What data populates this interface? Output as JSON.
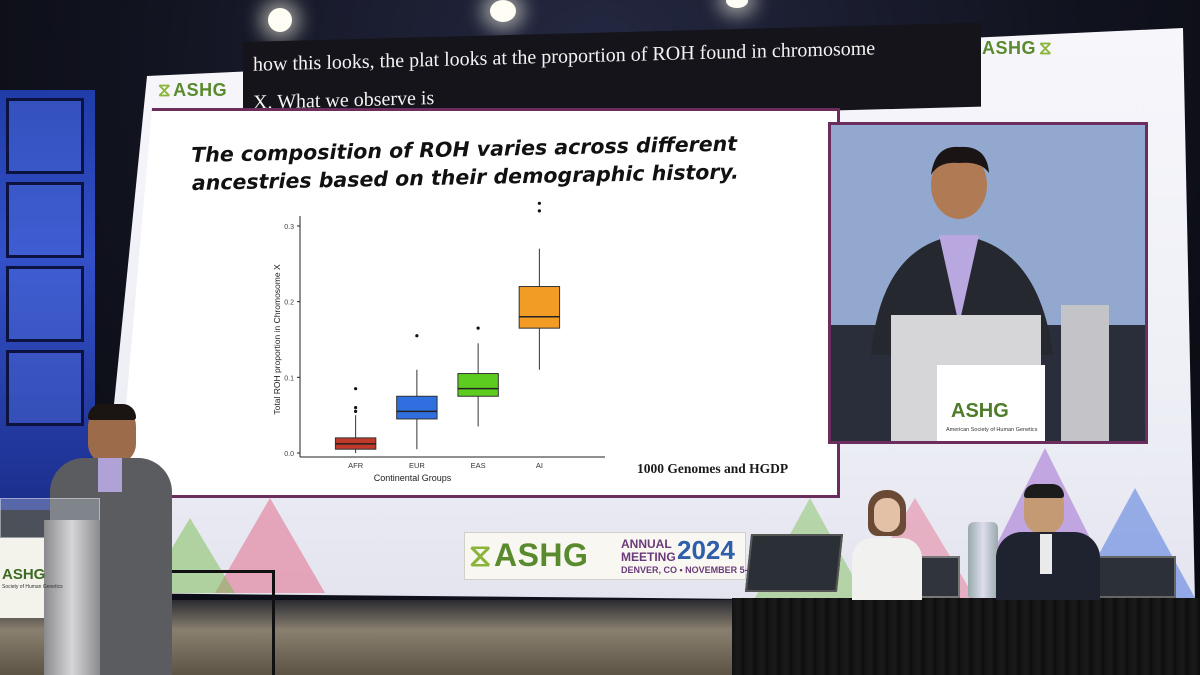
{
  "caption": {
    "line1": "how this looks, the plat looks at the proportion of ROH found in chromosome",
    "line2": "X.  What we observe is"
  },
  "logos": {
    "screen_top_left": "ASHG",
    "screen_top_right": "ASHG",
    "podium_video": "ASHG",
    "podium_video_sub": "American Society of Human Genetics",
    "podium_real": "ASHG",
    "podium_real_sub": "Society of Human Genetics"
  },
  "meeting_banner": {
    "brand": "ASHG",
    "annual": "ANNUAL",
    "meeting": "MEETING",
    "year": "2024",
    "location": "DENVER, CO • NOVEMBER 5-9"
  },
  "slide": {
    "title": "The composition of ROH varies across different ancestries based on their demographic history.",
    "source": "1000 Genomes and HGDP"
  },
  "chart_data": {
    "type": "box",
    "xlabel": "Continental Groups",
    "ylabel": "Total ROH proportion in Chromosome X",
    "ylim": [
      0,
      0.3
    ],
    "yticks": [
      "0.0",
      "0.1",
      "0.2",
      "0.3"
    ],
    "categories": [
      "AFR",
      "EUR",
      "EAS",
      "AI"
    ],
    "boxes": [
      {
        "name": "AFR",
        "color": "#c0392b",
        "min": 0.0,
        "q1": 0.005,
        "median": 0.012,
        "q3": 0.02,
        "max": 0.05,
        "outliers": [
          0.055,
          0.06,
          0.085
        ]
      },
      {
        "name": "EUR",
        "color": "#2f6fe0",
        "min": 0.005,
        "q1": 0.045,
        "median": 0.055,
        "q3": 0.075,
        "max": 0.11,
        "outliers": [
          0.155
        ]
      },
      {
        "name": "EAS",
        "color": "#5ccc1f",
        "min": 0.035,
        "q1": 0.075,
        "median": 0.085,
        "q3": 0.105,
        "max": 0.145,
        "outliers": [
          0.165
        ]
      },
      {
        "name": "AI",
        "color": "#f39c25",
        "min": 0.11,
        "q1": 0.165,
        "median": 0.18,
        "q3": 0.22,
        "max": 0.27,
        "outliers": [
          0.32,
          0.33
        ]
      }
    ]
  }
}
